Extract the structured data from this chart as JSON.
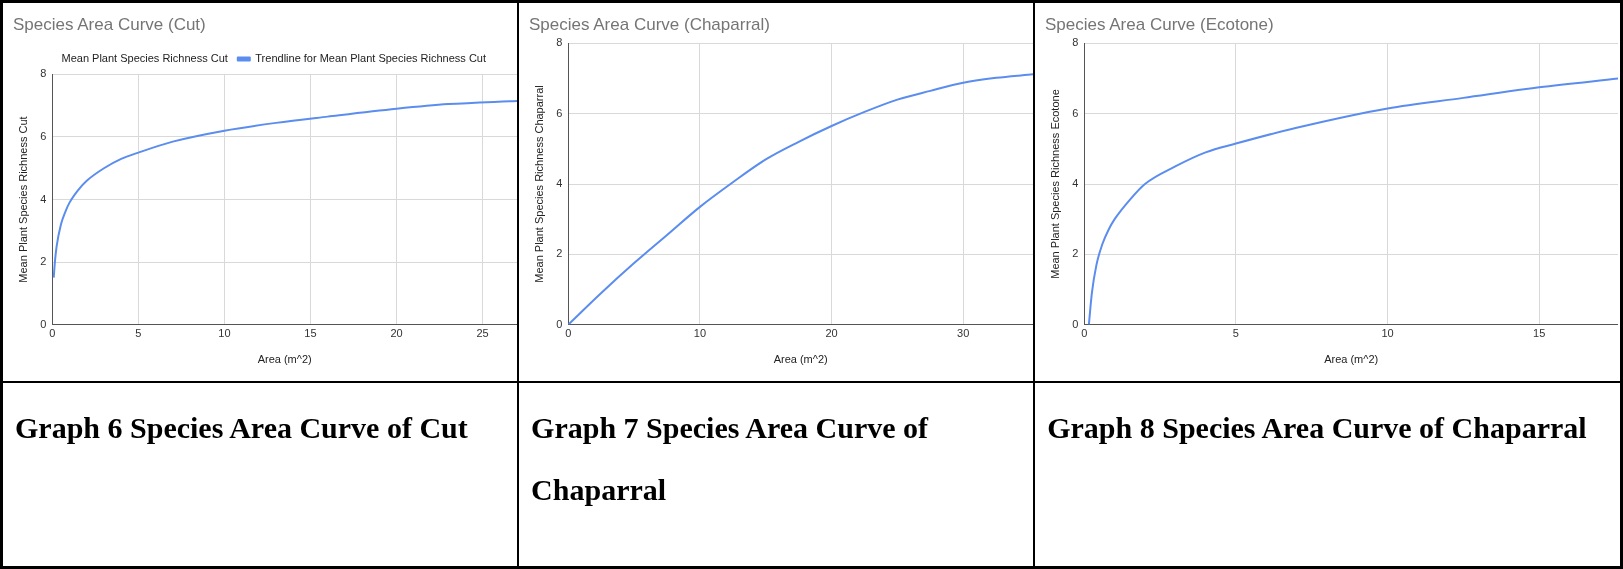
{
  "chart_data": [
    {
      "type": "line",
      "title": "Species Area Curve (Cut)",
      "xlabel": "Area (m^2)",
      "ylabel": "Mean Plant Species Richness Cut",
      "xlim": [
        0,
        27
      ],
      "xticks": [
        0,
        5,
        10,
        15,
        20,
        25
      ],
      "ylim": [
        0,
        8
      ],
      "yticks": [
        0,
        2,
        4,
        6,
        8
      ],
      "grid": true,
      "legend": "top",
      "marker": "none",
      "x": [
        0.08,
        0.15,
        0.25,
        0.5,
        0.75,
        1,
        1.5,
        2,
        3,
        4,
        5,
        7,
        10,
        13,
        16,
        20,
        23,
        27
      ],
      "series": [
        {
          "name": "Mean Plant Species Richness Cut",
          "values": [
            null,
            null,
            null,
            null,
            null,
            null,
            null,
            null,
            null,
            null,
            null,
            null,
            null,
            null,
            null,
            null,
            null,
            null
          ]
        },
        {
          "name": "Trendline for Mean Plant Species Richness Cut",
          "color": "#5b8def",
          "values": [
            1.5,
            2.0,
            2.5,
            3.2,
            3.6,
            3.9,
            4.3,
            4.6,
            5.0,
            5.3,
            5.5,
            5.85,
            6.2,
            6.45,
            6.65,
            6.9,
            7.05,
            7.15
          ]
        }
      ],
      "annotations": [
        "Graph 6 Species Area Curve of Cut"
      ]
    },
    {
      "type": "line",
      "title": "Species Area Curve (Chaparral)",
      "xlabel": "Area (m^2)",
      "ylabel": "Mean Plant Species Richness Chaparral",
      "xlim": [
        0,
        35.3
      ],
      "xticks": [
        0,
        10,
        20,
        30
      ],
      "ylim": [
        0,
        8
      ],
      "yticks": [
        0,
        2,
        4,
        6,
        8
      ],
      "grid": true,
      "marker": "none",
      "x": [
        0,
        2.5,
        5,
        7.5,
        10,
        12.5,
        15,
        17.5,
        20,
        22.5,
        25,
        27.5,
        30,
        32.5,
        35.3
      ],
      "series": [
        {
          "color": "#5b8def",
          "values": [
            0,
            0.9,
            1.75,
            2.55,
            3.35,
            4.05,
            4.7,
            5.2,
            5.65,
            6.05,
            6.4,
            6.65,
            6.88,
            7.02,
            7.12
          ]
        }
      ],
      "annotations": [
        "Graph 7 Species Area Curve of Chaparral"
      ]
    },
    {
      "type": "line",
      "title": "Species Area Curve (Ecotone)",
      "xlabel": "Area (m^2)",
      "ylabel": "Mean Plant Species Richness Ecotone",
      "xlim": [
        0,
        17.6
      ],
      "xticks": [
        0,
        5,
        10,
        15
      ],
      "ylim": [
        0,
        8
      ],
      "yticks": [
        0,
        2,
        4,
        6,
        8
      ],
      "grid": true,
      "marker": "none",
      "x": [
        0.15,
        0.25,
        0.4,
        0.6,
        0.8,
        1,
        1.5,
        2,
        3,
        4,
        5,
        7,
        10,
        12.5,
        15,
        17.6
      ],
      "series": [
        {
          "color": "#5b8def",
          "values": [
            0,
            0.9,
            1.7,
            2.3,
            2.7,
            3.0,
            3.55,
            4.0,
            4.5,
            4.9,
            5.15,
            5.6,
            6.15,
            6.45,
            6.75,
            7.0
          ]
        }
      ],
      "annotations": [
        "Graph 8 Species Area Curve of Chaparral"
      ]
    }
  ]
}
